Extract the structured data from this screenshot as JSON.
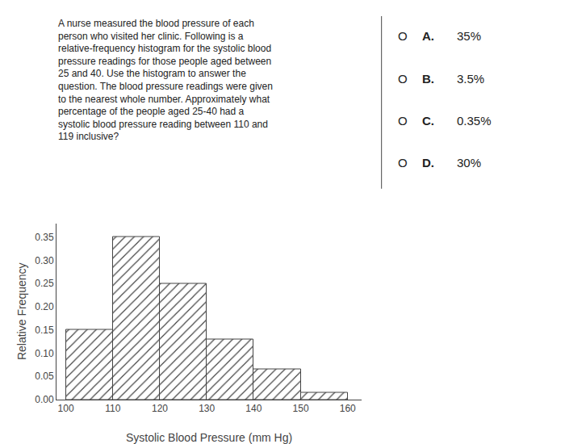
{
  "chart_data": {
    "type": "histogram",
    "annotations": {
      "question": "A nurse measured the blood pressure of each\nperson who visited her clinic. Following is a\nrelative-frequency histogram for the systolic blood\npressure readings for those people aged between\n25 and 40. Use the histogram to answer the\nquestion. The blood pressure readings were given\nto the nearest whole number. Approximately what\npercentage of the people aged 25-40 had a\nsystolic blood pressure reading between 110 and\n119 inclusive?",
      "options": [
        {
          "bullet": "O",
          "letter": "A.",
          "text": "35%"
        },
        {
          "bullet": "O",
          "letter": "B.",
          "text": "3.5%"
        },
        {
          "bullet": "O",
          "letter": "C.",
          "text": "0.35%"
        },
        {
          "bullet": "O",
          "letter": "D.",
          "text": "30%"
        }
      ]
    },
    "bins": [
      100,
      110,
      120,
      130,
      140,
      150,
      160
    ],
    "values": [
      0.15,
      0.35,
      0.25,
      0.13,
      0.065,
      0.015
    ],
    "color": "#c8c8c8",
    "xlabel": "Systolic Blood Pressure (mm Hg)",
    "ylabel": "Relative Frequency",
    "xlim": [
      98,
      163
    ],
    "ylim": [
      0.0,
      0.38
    ],
    "xticks": [
      100,
      110,
      120,
      130,
      140,
      150,
      160
    ],
    "yticks": [
      {
        "value": 0,
        "label": "0.00"
      },
      0.05,
      {
        "value": 0.1,
        "label": "0.10"
      },
      0.15,
      {
        "value": 0.2,
        "label": "0.20"
      },
      0.25,
      {
        "value": 0.3,
        "label": "0.30"
      },
      0.35
    ],
    "grid": false
  }
}
